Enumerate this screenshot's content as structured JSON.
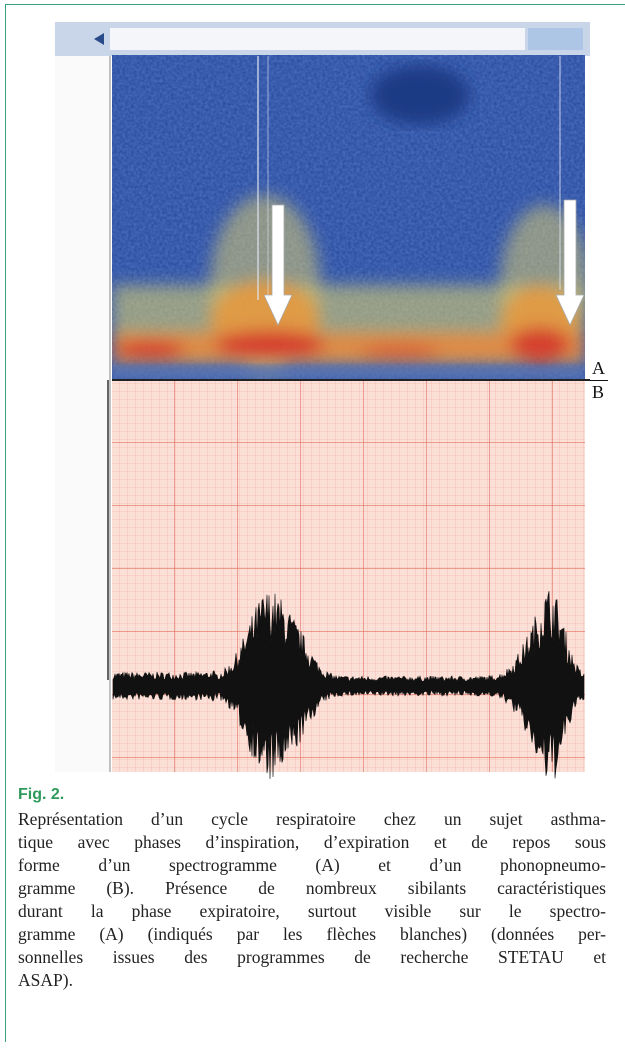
{
  "figure": {
    "labels": {
      "a": "A",
      "b": "B"
    }
  },
  "caption": {
    "label": "Fig. 2.",
    "lines": [
      "Représentation d’un cycle respiratoire chez un sujet asthma-",
      "tique avec phases d’inspiration, d’expiration et de repos sous",
      "forme d’un spectrogramme (A) et d’un phonopneumo-",
      "gramme (B). Présence de nombreux sibilants caractéristiques",
      "durant la phase expiratoire, surtout visible sur le spectro-",
      "gramme (A) (indiqués par les flèches blanches) (données per-",
      "sonnelles issues des programmes de recherche STETAU et",
      "ASAP)."
    ]
  }
}
